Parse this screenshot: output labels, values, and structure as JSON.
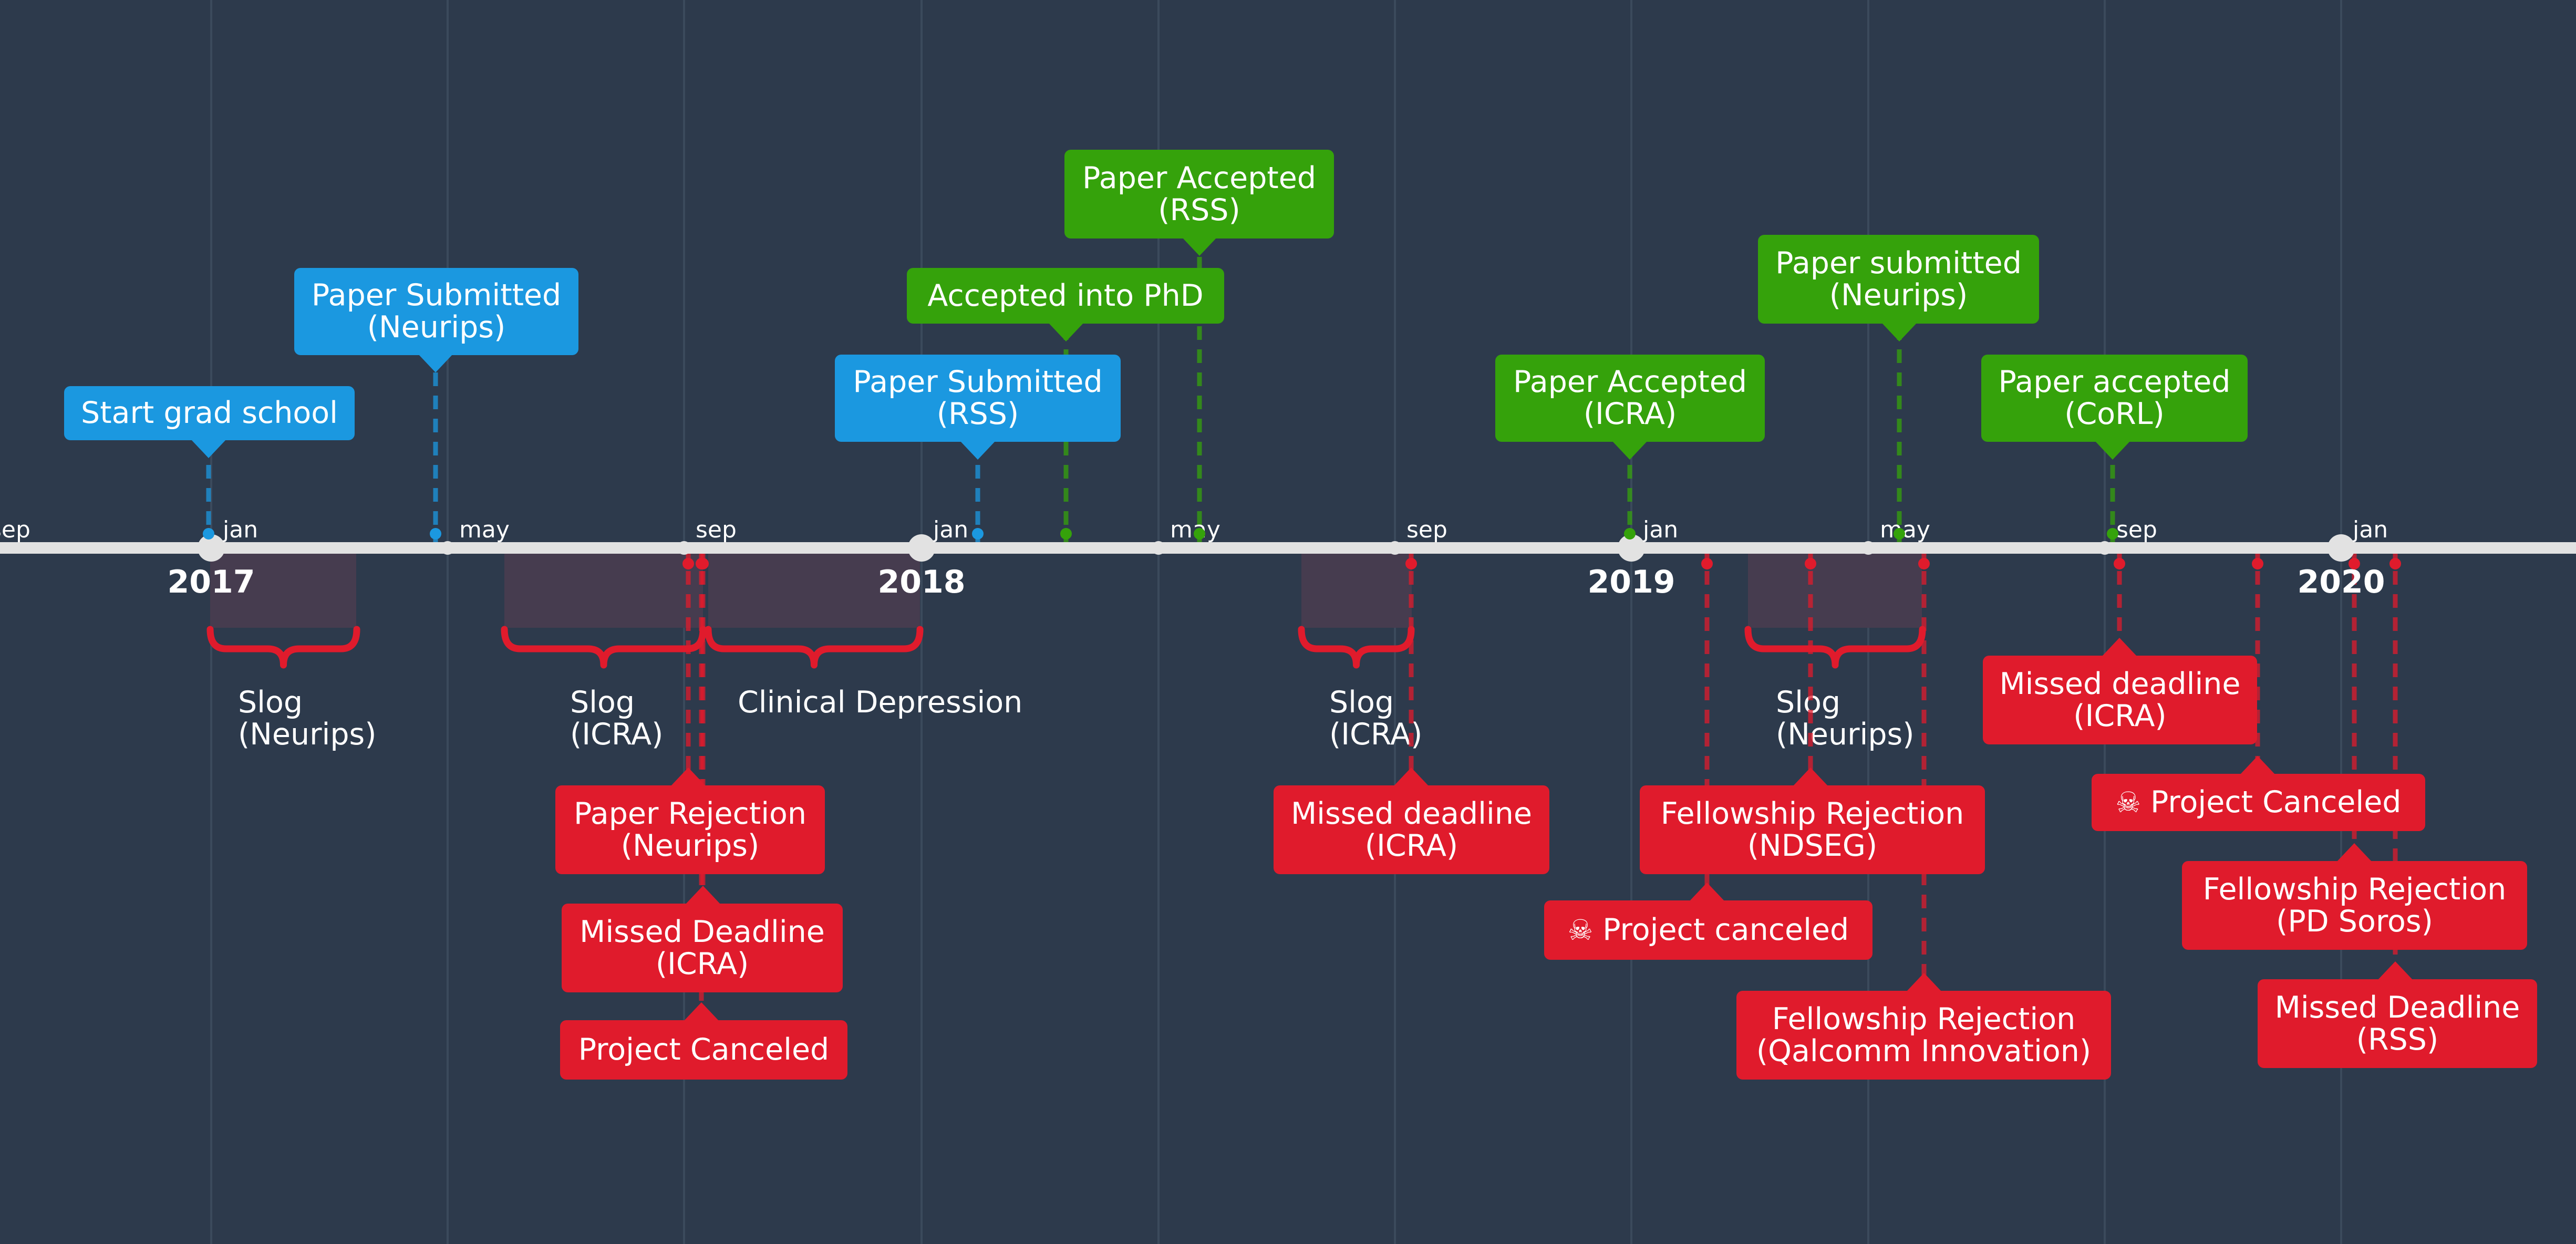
{
  "colors": {
    "background": "#2d3a4c",
    "axis": "#e2e2e2",
    "gridline": "#3b4a5c",
    "blue": "#1b98e0",
    "green": "#35a20b",
    "red": "#e01b2c",
    "brace_fill": "#463c4f"
  },
  "axis": {
    "years": [
      "2017",
      "2018",
      "2019",
      "2020"
    ],
    "month_ticks": [
      "sep",
      "jan",
      "may",
      "sep",
      "jan",
      "may",
      "sep",
      "jan",
      "may",
      "sep",
      "jan"
    ]
  },
  "events_above": [
    {
      "id": "start-grad-school",
      "lines": [
        "Start grad school"
      ],
      "color": "blue"
    },
    {
      "id": "paper-submitted-neurips",
      "lines": [
        "Paper Submitted",
        "(Neurips)"
      ],
      "color": "blue"
    },
    {
      "id": "paper-submitted-rss",
      "lines": [
        "Paper Submitted",
        "(RSS)"
      ],
      "color": "blue"
    },
    {
      "id": "accepted-into-phd",
      "lines": [
        "Accepted into PhD"
      ],
      "color": "green"
    },
    {
      "id": "paper-accepted-rss",
      "lines": [
        "Paper Accepted",
        "(RSS)"
      ],
      "color": "green"
    },
    {
      "id": "paper-accepted-icra",
      "lines": [
        "Paper Accepted",
        "(ICRA)"
      ],
      "color": "green"
    },
    {
      "id": "paper-submitted-neurips-2",
      "lines": [
        "Paper submitted",
        "(Neurips)"
      ],
      "color": "green"
    },
    {
      "id": "paper-accepted-corl",
      "lines": [
        "Paper accepted",
        "(CoRL)"
      ],
      "color": "green"
    }
  ],
  "periods": [
    {
      "id": "slog-neurips-2017",
      "lines": [
        "Slog",
        "(Neurips)"
      ]
    },
    {
      "id": "slog-icra-2017",
      "lines": [
        "Slog",
        "(ICRA)"
      ]
    },
    {
      "id": "clinical-depression",
      "lines": [
        "Clinical Depression"
      ]
    },
    {
      "id": "slog-icra-2018",
      "lines": [
        "Slog",
        "(ICRA)"
      ]
    },
    {
      "id": "slog-neurips-2019",
      "lines": [
        "Slog",
        "(Neurips)"
      ]
    }
  ],
  "events_below": [
    {
      "id": "paper-rejection-neurips",
      "lines": [
        "Paper Rejection",
        "(Neurips)"
      ],
      "color": "red"
    },
    {
      "id": "missed-deadline-icra-2017",
      "lines": [
        "Missed Deadline",
        "(ICRA)"
      ],
      "color": "red"
    },
    {
      "id": "project-canceled-2017",
      "lines": [
        "Project Canceled"
      ],
      "color": "red"
    },
    {
      "id": "missed-deadline-icra-2018",
      "lines": [
        "Missed deadline",
        "(ICRA)"
      ],
      "color": "red"
    },
    {
      "id": "fellowship-rejection-ndseg",
      "lines": [
        "Fellowship Rejection",
        "(NDSEG)"
      ],
      "color": "red"
    },
    {
      "id": "project-canceled-2019",
      "lines": [
        "Project canceled"
      ],
      "color": "red",
      "icon": "skull-crossbones-icon",
      "glyph": "☠"
    },
    {
      "id": "fellowship-rejection-qualcomm",
      "lines": [
        "Fellowship Rejection",
        "(Qalcomm Innovation)"
      ],
      "color": "red"
    },
    {
      "id": "missed-deadline-icra-2019",
      "lines": [
        "Missed deadline",
        "(ICRA)"
      ],
      "color": "red"
    },
    {
      "id": "project-canceled-2019b",
      "lines": [
        "Project Canceled"
      ],
      "color": "red",
      "icon": "skull-crossbones-icon",
      "glyph": "☠"
    },
    {
      "id": "fellowship-rejection-pd-soros",
      "lines": [
        "Fellowship Rejection",
        "(PD Soros)"
      ],
      "color": "red"
    },
    {
      "id": "missed-deadline-rss",
      "lines": [
        "Missed Deadline",
        "(RSS)"
      ],
      "color": "red"
    }
  ]
}
